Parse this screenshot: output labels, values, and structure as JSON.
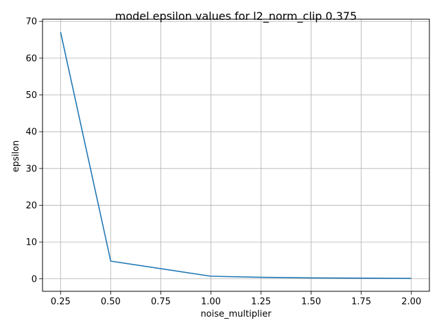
{
  "chart_data": {
    "type": "line",
    "title": "model epsilon values for l2_norm_clip 0.375",
    "xlabel": "noise_multiplier",
    "ylabel": "epsilon",
    "xlim": [
      0.16,
      2.09
    ],
    "ylim": [
      -3.4,
      70.6
    ],
    "xticks": [
      0.25,
      0.5,
      0.75,
      1.0,
      1.25,
      1.5,
      1.75,
      2.0
    ],
    "xtick_labels": [
      "0.25",
      "0.50",
      "0.75",
      "1.00",
      "1.25",
      "1.50",
      "1.75",
      "2.00"
    ],
    "yticks": [
      0,
      10,
      20,
      30,
      40,
      50,
      60,
      70
    ],
    "ytick_labels": [
      "0",
      "10",
      "20",
      "30",
      "40",
      "50",
      "60",
      "70"
    ],
    "grid": true,
    "series": [
      {
        "color": "#1f77b4",
        "x": [
          0.25,
          0.5,
          1.0,
          1.25,
          1.5,
          2.0
        ],
        "y": [
          67.1,
          4.8,
          0.7,
          0.4,
          0.25,
          0.1
        ]
      }
    ]
  }
}
